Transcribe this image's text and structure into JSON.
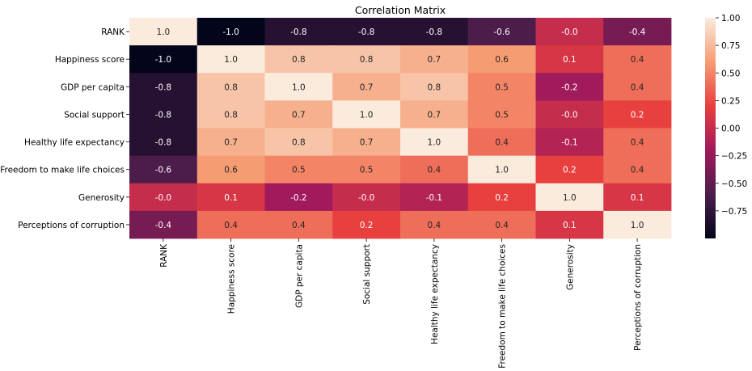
{
  "chart_data": {
    "type": "heatmap",
    "title": "Correlation Matrix",
    "xlabel": "",
    "ylabel": "",
    "row_labels": [
      "RANK",
      "Happiness score",
      "GDP per capita",
      "Social support",
      "Healthy life expectancy",
      "Freedom to make life choices",
      "Generosity",
      "Perceptions of corruption"
    ],
    "col_labels": [
      "RANK",
      "Happiness score",
      "GDP per capita",
      "Social support",
      "Healthy life expectancy",
      "Freedom to make life choices",
      "Generosity",
      "Perceptions of corruption"
    ],
    "values": [
      [
        1.0,
        -1.0,
        -0.8,
        -0.8,
        -0.8,
        -0.6,
        -0.0,
        -0.4
      ],
      [
        -1.0,
        1.0,
        0.8,
        0.8,
        0.7,
        0.6,
        0.1,
        0.4
      ],
      [
        -0.8,
        0.8,
        1.0,
        0.7,
        0.8,
        0.5,
        -0.2,
        0.4
      ],
      [
        -0.8,
        0.8,
        0.7,
        1.0,
        0.7,
        0.5,
        -0.0,
        0.2
      ],
      [
        -0.8,
        0.7,
        0.8,
        0.7,
        1.0,
        0.4,
        -0.1,
        0.4
      ],
      [
        -0.6,
        0.6,
        0.5,
        0.5,
        0.4,
        1.0,
        0.2,
        0.4
      ],
      [
        -0.0,
        0.1,
        -0.2,
        -0.0,
        -0.1,
        0.2,
        1.0,
        0.1
      ],
      [
        -0.4,
        0.4,
        0.4,
        0.2,
        0.4,
        0.4,
        0.1,
        1.0
      ]
    ],
    "value_labels": [
      [
        "1.0",
        "-1.0",
        "-0.8",
        "-0.8",
        "-0.8",
        "-0.6",
        "-0.0",
        "-0.4"
      ],
      [
        "-1.0",
        "1.0",
        "0.8",
        "0.8",
        "0.7",
        "0.6",
        "0.1",
        "0.4"
      ],
      [
        "-0.8",
        "0.8",
        "1.0",
        "0.7",
        "0.8",
        "0.5",
        "-0.2",
        "0.4"
      ],
      [
        "-0.8",
        "0.8",
        "0.7",
        "1.0",
        "0.7",
        "0.5",
        "-0.0",
        "0.2"
      ],
      [
        "-0.8",
        "0.7",
        "0.8",
        "0.7",
        "1.0",
        "0.4",
        "-0.1",
        "0.4"
      ],
      [
        "-0.6",
        "0.6",
        "0.5",
        "0.5",
        "0.4",
        "1.0",
        "0.2",
        "0.4"
      ],
      [
        "-0.0",
        "0.1",
        "-0.2",
        "-0.0",
        "-0.1",
        "0.2",
        "1.0",
        "0.1"
      ],
      [
        "-0.4",
        "0.4",
        "0.4",
        "0.2",
        "0.4",
        "0.4",
        "0.1",
        "1.0"
      ]
    ],
    "colorbar": {
      "range": [
        -1.0,
        1.0
      ],
      "ticks": [
        1.0,
        0.75,
        0.5,
        0.25,
        0.0,
        -0.25,
        -0.5,
        -0.75
      ],
      "tick_labels": [
        "1.00",
        "0.75",
        "0.50",
        "0.25",
        "0.00",
        "−0.25",
        "−0.50",
        "−0.75"
      ],
      "colormap": "rocket",
      "colormap_stops": [
        "#03051a",
        "#4c1d4b",
        "#a11a5b",
        "#e83f3f",
        "#f69c73",
        "#faebdd"
      ]
    },
    "grid": false
  }
}
